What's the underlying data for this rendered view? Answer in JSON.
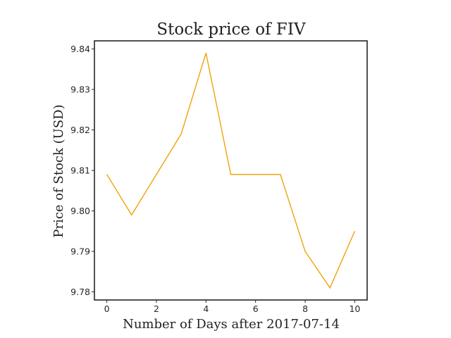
{
  "chart_data": {
    "type": "line",
    "title": "Stock price of FIV",
    "xlabel": "Number of Days after 2017-07-14",
    "ylabel": "Price of Stock (USD)",
    "x": [
      0,
      1,
      2,
      3,
      4,
      5,
      6,
      7,
      8,
      9,
      10
    ],
    "series": [
      {
        "values": [
          9.809,
          9.799,
          9.809,
          9.819,
          9.839,
          9.809,
          9.809,
          9.809,
          9.79,
          9.781,
          9.795
        ],
        "color": "#f0a30a"
      }
    ],
    "xlim": [
      -0.5,
      10.5
    ],
    "ylim": [
      9.778,
      9.842
    ],
    "xticks": [
      0,
      2,
      4,
      6,
      8,
      10
    ],
    "xtick_labels": [
      "0",
      "2",
      "4",
      "6",
      "8",
      "10"
    ],
    "yticks": [
      9.78,
      9.79,
      9.8,
      9.81,
      9.82,
      9.83,
      9.84
    ],
    "ytick_labels": [
      "9.78",
      "9.79",
      "9.80",
      "9.81",
      "9.82",
      "9.83",
      "9.84"
    ],
    "grid": false,
    "legend": "none"
  }
}
